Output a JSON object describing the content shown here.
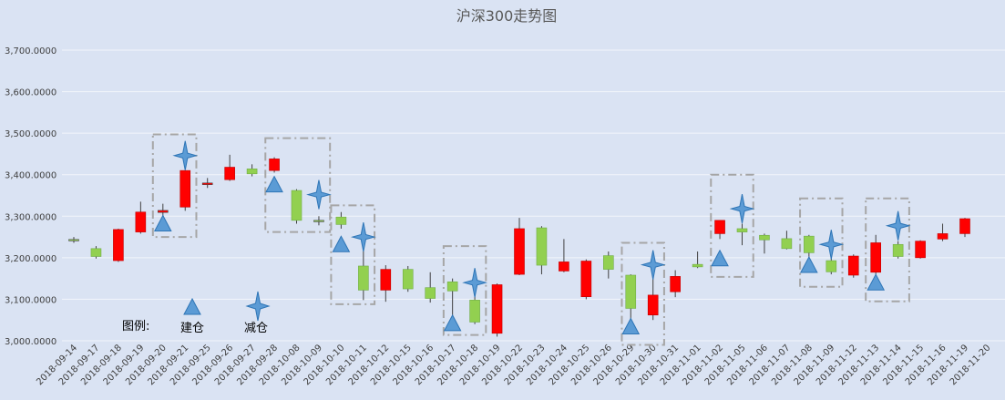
{
  "chart_data": {
    "type": "candlestick",
    "title": "沪深300走势图",
    "y_tick_labels": [
      "3,000.0000",
      "3,100.0000",
      "3,200.0000",
      "3,300.0000",
      "3,400.0000",
      "3,500.0000",
      "3,600.0000",
      "3,700.0000"
    ],
    "ylim": [
      3000,
      3700
    ],
    "grid": true,
    "categories": [
      "2018-09-14",
      "2018-09-17",
      "2018-09-18",
      "2018-09-19",
      "2018-09-20",
      "2018-09-21",
      "2018-09-25",
      "2018-09-26",
      "2018-09-27",
      "2018-09-28",
      "2018-10-08",
      "2018-10-09",
      "2018-10-10",
      "2018-10-11",
      "2018-10-12",
      "2018-10-15",
      "2018-10-16",
      "2018-10-17",
      "2018-10-18",
      "2018-10-19",
      "2018-10-22",
      "2018-10-23",
      "2018-10-24",
      "2018-10-25",
      "2018-10-26",
      "2018-10-29",
      "2018-10-30",
      "2018-10-31",
      "2018-11-01",
      "2018-11-02",
      "2018-11-05",
      "2018-11-06",
      "2018-11-07",
      "2018-11-08",
      "2018-11-09",
      "2018-11-12",
      "2018-11-13",
      "2018-11-14",
      "2018-11-15",
      "2018-11-16",
      "2018-11-19",
      "2018-11-20"
    ],
    "candles": [
      {
        "o": 3244,
        "h": 3250,
        "l": 3236,
        "c": 3242
      },
      {
        "o": 3222,
        "h": 3228,
        "l": 3198,
        "c": 3203
      },
      {
        "o": 3193,
        "h": 3270,
        "l": 3190,
        "c": 3268
      },
      {
        "o": 3262,
        "h": 3335,
        "l": 3258,
        "c": 3310
      },
      {
        "o": 3309,
        "h": 3330,
        "l": 3295,
        "c": 3314
      },
      {
        "o": 3322,
        "h": 3410,
        "l": 3313,
        "c": 3410
      },
      {
        "o": 3376,
        "h": 3392,
        "l": 3368,
        "c": 3380
      },
      {
        "o": 3388,
        "h": 3448,
        "l": 3385,
        "c": 3418
      },
      {
        "o": 3414,
        "h": 3425,
        "l": 3396,
        "c": 3402
      },
      {
        "o": 3410,
        "h": 3442,
        "l": 3405,
        "c": 3438
      },
      {
        "o": 3362,
        "h": 3365,
        "l": 3282,
        "c": 3290
      },
      {
        "o": 3290,
        "h": 3300,
        "l": 3278,
        "c": 3288
      },
      {
        "o": 3298,
        "h": 3310,
        "l": 3270,
        "c": 3280
      },
      {
        "o": 3180,
        "h": 3220,
        "l": 3098,
        "c": 3122
      },
      {
        "o": 3122,
        "h": 3182,
        "l": 3094,
        "c": 3172
      },
      {
        "o": 3172,
        "h": 3180,
        "l": 3118,
        "c": 3125
      },
      {
        "o": 3128,
        "h": 3165,
        "l": 3092,
        "c": 3102
      },
      {
        "o": 3142,
        "h": 3150,
        "l": 3050,
        "c": 3120
      },
      {
        "o": 3098,
        "h": 3128,
        "l": 3040,
        "c": 3045
      },
      {
        "o": 3018,
        "h": 3138,
        "l": 3010,
        "c": 3135
      },
      {
        "o": 3160,
        "h": 3296,
        "l": 3158,
        "c": 3270
      },
      {
        "o": 3272,
        "h": 3276,
        "l": 3160,
        "c": 3182
      },
      {
        "o": 3168,
        "h": 3245,
        "l": 3165,
        "c": 3190
      },
      {
        "o": 3106,
        "h": 3196,
        "l": 3100,
        "c": 3192
      },
      {
        "o": 3205,
        "h": 3215,
        "l": 3150,
        "c": 3172
      },
      {
        "o": 3158,
        "h": 3160,
        "l": 3030,
        "c": 3078
      },
      {
        "o": 3062,
        "h": 3172,
        "l": 3050,
        "c": 3110
      },
      {
        "o": 3118,
        "h": 3170,
        "l": 3105,
        "c": 3155
      },
      {
        "o": 3184,
        "h": 3215,
        "l": 3175,
        "c": 3178
      },
      {
        "o": 3258,
        "h": 3290,
        "l": 3245,
        "c": 3290
      },
      {
        "o": 3270,
        "h": 3282,
        "l": 3230,
        "c": 3262
      },
      {
        "o": 3254,
        "h": 3258,
        "l": 3210,
        "c": 3243
      },
      {
        "o": 3246,
        "h": 3265,
        "l": 3220,
        "c": 3222
      },
      {
        "o": 3252,
        "h": 3255,
        "l": 3200,
        "c": 3212
      },
      {
        "o": 3193,
        "h": 3200,
        "l": 3160,
        "c": 3166
      },
      {
        "o": 3158,
        "h": 3208,
        "l": 3152,
        "c": 3204
      },
      {
        "o": 3165,
        "h": 3255,
        "l": 3160,
        "c": 3236
      },
      {
        "o": 3232,
        "h": 3240,
        "l": 3198,
        "c": 3203
      },
      {
        "o": 3200,
        "h": 3242,
        "l": 3198,
        "c": 3240
      },
      {
        "o": 3245,
        "h": 3282,
        "l": 3240,
        "c": 3258
      },
      {
        "o": 3258,
        "h": 3296,
        "l": 3250,
        "c": 3294
      },
      {
        "o": null,
        "h": null,
        "l": null,
        "c": null
      }
    ],
    "colors": {
      "up": "#ff0000",
      "down": "#92d050",
      "marker": "#5b9bd5",
      "marker_edge": "#2e75b6",
      "box": "#a6a6a6",
      "background": "#dae3f3",
      "wick": "#404040"
    },
    "buy_markers": [
      {
        "x": 4,
        "y": 3282
      },
      {
        "x": 9,
        "y": 3376
      },
      {
        "x": 12,
        "y": 3232
      },
      {
        "x": 17,
        "y": 3042
      },
      {
        "x": 25,
        "y": 3034
      },
      {
        "x": 29,
        "y": 3198
      },
      {
        "x": 33,
        "y": 3182
      },
      {
        "x": 36,
        "y": 3140
      }
    ],
    "sell_markers": [
      {
        "x": 5,
        "y": 3446
      },
      {
        "x": 11,
        "y": 3352
      },
      {
        "x": 13,
        "y": 3250
      },
      {
        "x": 18,
        "y": 3140
      },
      {
        "x": 26,
        "y": 3183
      },
      {
        "x": 30,
        "y": 3318
      },
      {
        "x": 34,
        "y": 3232
      },
      {
        "x": 37,
        "y": 3277
      }
    ],
    "highlight_boxes": [
      {
        "x0": 3.55,
        "x1": 5.5,
        "y0": 3250,
        "y1": 3497
      },
      {
        "x0": 8.6,
        "x1": 11.5,
        "y0": 3262,
        "y1": 3488
      },
      {
        "x0": 11.55,
        "x1": 13.5,
        "y0": 3088,
        "y1": 3326
      },
      {
        "x0": 16.6,
        "x1": 18.5,
        "y0": 3014,
        "y1": 3228
      },
      {
        "x0": 24.6,
        "x1": 26.5,
        "y0": 2990,
        "y1": 3236
      },
      {
        "x0": 28.6,
        "x1": 30.5,
        "y0": 3154,
        "y1": 3400
      },
      {
        "x0": 32.6,
        "x1": 34.5,
        "y0": 3130,
        "y1": 3343
      },
      {
        "x0": 35.55,
        "x1": 37.5,
        "y0": 3095,
        "y1": 3343
      }
    ],
    "legend": {
      "label": "图例:",
      "buy_label": "建仓",
      "sell_label": "减仓"
    }
  }
}
